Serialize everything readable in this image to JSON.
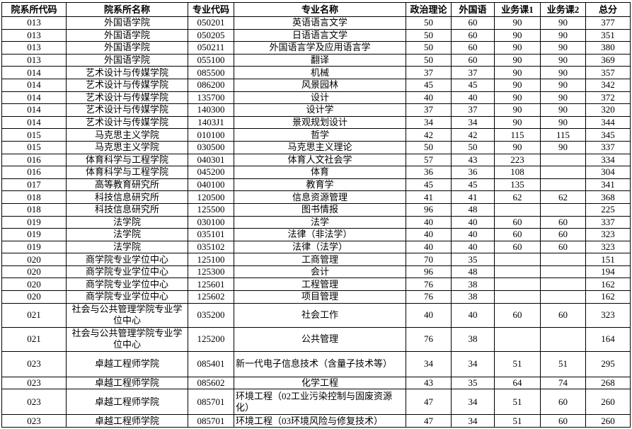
{
  "headers": [
    "院系所代码",
    "院系所名称",
    "专业代码",
    "专业名称",
    "政治理论",
    "外国语",
    "业务课1",
    "业务课2",
    "总分"
  ],
  "rows": [
    [
      "013",
      "外国语学院",
      "050201",
      "英语语言文学",
      "50",
      "60",
      "90",
      "90",
      "377"
    ],
    [
      "013",
      "外国语学院",
      "050205",
      "日语语言文学",
      "50",
      "60",
      "90",
      "90",
      "351"
    ],
    [
      "013",
      "外国语学院",
      "050211",
      "外国语言学及应用语言学",
      "50",
      "60",
      "90",
      "90",
      "380"
    ],
    [
      "013",
      "外国语学院",
      "055100",
      "翻译",
      "50",
      "60",
      "90",
      "90",
      "369"
    ],
    [
      "014",
      "艺术设计与传媒学院",
      "085500",
      "机械",
      "37",
      "37",
      "90",
      "90",
      "357"
    ],
    [
      "014",
      "艺术设计与传媒学院",
      "086200",
      "风景园林",
      "45",
      "45",
      "90",
      "90",
      "342"
    ],
    [
      "014",
      "艺术设计与传媒学院",
      "135700",
      "设计",
      "40",
      "40",
      "90",
      "90",
      "372"
    ],
    [
      "014",
      "艺术设计与传媒学院",
      "140300",
      "设计学",
      "37",
      "37",
      "90",
      "90",
      "320"
    ],
    [
      "014",
      "艺术设计与传媒学院",
      "1403J1",
      "景观规划设计",
      "34",
      "34",
      "90",
      "90",
      "344"
    ],
    [
      "015",
      "马克思主义学院",
      "010100",
      "哲学",
      "42",
      "42",
      "115",
      "115",
      "345"
    ],
    [
      "015",
      "马克思主义学院",
      "030500",
      "马克思主义理论",
      "50",
      "50",
      "90",
      "90",
      "337"
    ],
    [
      "016",
      "体育科学与工程学院",
      "040301",
      "体育人文社会学",
      "57",
      "43",
      "223",
      "",
      "334"
    ],
    [
      "016",
      "体育科学与工程学院",
      "045200",
      "体育",
      "36",
      "36",
      "108",
      "",
      "304"
    ],
    [
      "017",
      "高等教育研究所",
      "040100",
      "教育学",
      "45",
      "45",
      "135",
      "",
      "341"
    ],
    [
      "018",
      "科技信息研究所",
      "120500",
      "信息资源管理",
      "41",
      "41",
      "62",
      "62",
      "368"
    ],
    [
      "018",
      "科技信息研究所",
      "125500",
      "图书情报",
      "96",
      "48",
      "",
      "",
      "225"
    ],
    [
      "019",
      "法学院",
      "030100",
      "法学",
      "40",
      "40",
      "60",
      "60",
      "337"
    ],
    [
      "019",
      "法学院",
      "035101",
      "法律（非法学）",
      "40",
      "40",
      "60",
      "60",
      "323"
    ],
    [
      "019",
      "法学院",
      "035102",
      "法律（法学）",
      "40",
      "40",
      "60",
      "60",
      "323"
    ],
    [
      "020",
      "商学院专业学位中心",
      "125100",
      "工商管理",
      "70",
      "35",
      "",
      "",
      "151"
    ],
    [
      "020",
      "商学院专业学位中心",
      "125300",
      "会计",
      "96",
      "48",
      "",
      "",
      "194"
    ],
    [
      "020",
      "商学院专业学位中心",
      "125601",
      "工程管理",
      "76",
      "38",
      "",
      "",
      "162"
    ],
    [
      "020",
      "商学院专业学位中心",
      "125602",
      "项目管理",
      "76",
      "38",
      "",
      "",
      "162"
    ],
    [
      "021",
      "社会与公共管理学院专业学位中心",
      "035200",
      "社会工作",
      "40",
      "40",
      "60",
      "60",
      "323"
    ],
    [
      "021",
      "社会与公共管理学院专业学位中心",
      "125200",
      "公共管理",
      "76",
      "38",
      "",
      "",
      "164"
    ],
    [
      "023",
      "卓越工程师学院",
      "085401",
      "新一代电子信息技术（含量子技术等）",
      "34",
      "34",
      "51",
      "51",
      "295"
    ],
    [
      "023",
      "卓越工程师学院",
      "085602",
      "化学工程",
      "43",
      "35",
      "64",
      "74",
      "268"
    ],
    [
      "023",
      "卓越工程师学院",
      "085701",
      "环境工程（02工业污染控制与固废资源化）",
      "47",
      "34",
      "51",
      "60",
      "260"
    ],
    [
      "023",
      "卓越工程师学院",
      "085701",
      "环境工程（03环境风险与修复技术）",
      "47",
      "34",
      "51",
      "60",
      "260"
    ]
  ]
}
